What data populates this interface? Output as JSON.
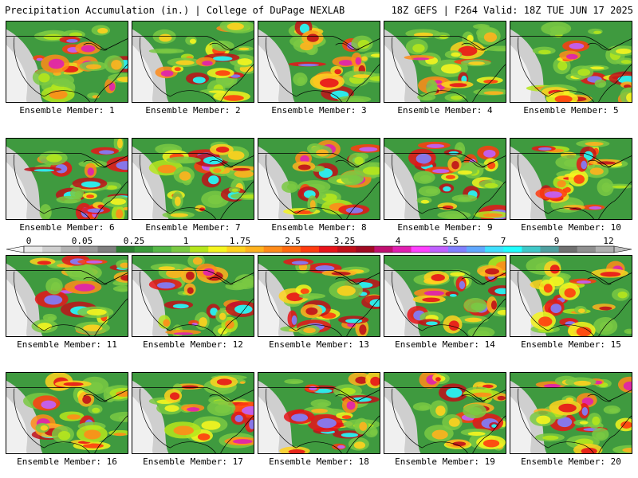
{
  "header": {
    "left": "Precipitation Accumulation (in.) | College of DuPage NEXLAB",
    "right": "18Z GEFS | F264 Valid: 18Z TUE JUN 17 2025"
  },
  "caption_prefix": "Ensemble Member: ",
  "members": [
    {
      "id": "1",
      "text": "Ensemble Member: 1"
    },
    {
      "id": "2",
      "text": "Ensemble Member: 2"
    },
    {
      "id": "3",
      "text": "Ensemble Member: 3"
    },
    {
      "id": "4",
      "text": "Ensemble Member: 4"
    },
    {
      "id": "5",
      "text": "Ensemble Member: 5"
    },
    {
      "id": "6",
      "text": "Ensemble Member: 6"
    },
    {
      "id": "7",
      "text": "Ensemble Member: 7"
    },
    {
      "id": "8",
      "text": "Ensemble Member: 8"
    },
    {
      "id": "9",
      "text": "Ensemble Member: 9"
    },
    {
      "id": "10",
      "text": "Ensemble Member: 10"
    },
    {
      "id": "11",
      "text": "Ensemble Member: 11"
    },
    {
      "id": "12",
      "text": "Ensemble Member: 12"
    },
    {
      "id": "13",
      "text": "Ensemble Member: 13"
    },
    {
      "id": "14",
      "text": "Ensemble Member: 14"
    },
    {
      "id": "15",
      "text": "Ensemble Member: 15"
    },
    {
      "id": "16",
      "text": "Ensemble Member: 16"
    },
    {
      "id": "17",
      "text": "Ensemble Member: 17"
    },
    {
      "id": "18",
      "text": "Ensemble Member: 18"
    },
    {
      "id": "19",
      "text": "Ensemble Member: 19"
    },
    {
      "id": "20",
      "text": "Ensemble Member: 20"
    }
  ],
  "colorbar": {
    "labels": [
      "0",
      "0.05",
      "0.25",
      "1",
      "1.75",
      "2.5",
      "3.25",
      "4",
      "5.5",
      "7",
      "9",
      "12"
    ],
    "colors": [
      "#e8e8e8",
      "#cfcfcf",
      "#b4b4b4",
      "#9a9a9a",
      "#7f7f7f",
      "#2e7d32",
      "#3a9a3a",
      "#56b848",
      "#7ac943",
      "#b5e61d",
      "#f5f51f",
      "#ffd21e",
      "#ffb21e",
      "#ff8c1a",
      "#ff6a10",
      "#ff3c10",
      "#e8141a",
      "#c0101a",
      "#a00a22",
      "#c01070",
      "#e020b0",
      "#ff40ff",
      "#c060ff",
      "#8080ff",
      "#60a8ff",
      "#40e0ff",
      "#20ffff",
      "#40c8c8",
      "#50a0a0",
      "#707070",
      "#909090",
      "#b0b0b0"
    ]
  }
}
